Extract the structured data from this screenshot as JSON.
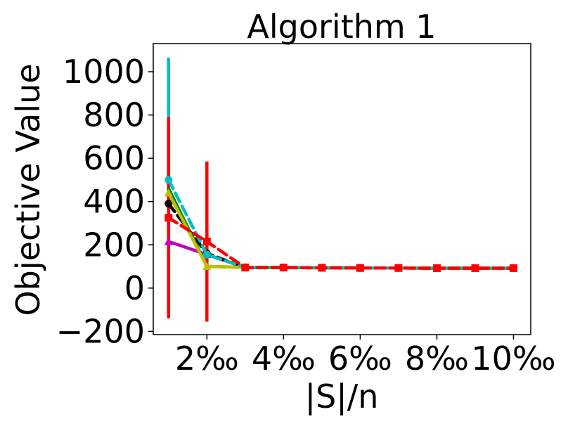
{
  "chart_data": {
    "type": "line",
    "title": "Algorithm 1",
    "xlabel": "|S|/n",
    "ylabel": "Objective Value",
    "x": [
      1,
      2,
      3,
      4,
      5,
      6,
      7,
      8,
      9,
      10
    ],
    "xticks": [
      2,
      4,
      6,
      8,
      10
    ],
    "xtick_labels": [
      "2‰",
      "4‰",
      "6‰",
      "8‰",
      "10‰"
    ],
    "xlim": [
      0.6,
      10.45
    ],
    "yticks": [
      -200,
      0,
      200,
      400,
      600,
      800,
      1000
    ],
    "ytick_labels": [
      "−200",
      "0",
      "200",
      "400",
      "600",
      "800",
      "1000"
    ],
    "ylim": [
      -215,
      1130
    ],
    "grid": false,
    "series": [
      {
        "color": "#bf00bf",
        "dash": "solid",
        "marker": "triangle",
        "values": [
          215,
          155,
          95,
          95,
          94,
          93,
          93,
          92,
          92,
          92
        ]
      },
      {
        "color": "#000000",
        "dash": "dashed",
        "marker": "circle",
        "values": [
          390,
          160,
          96,
          95,
          94,
          93,
          93,
          92,
          92,
          92
        ],
        "err": [
          0,
          0,
          0,
          0,
          0,
          0,
          0,
          0,
          0,
          0
        ]
      },
      {
        "color": "#008000",
        "dash": "solid",
        "marker": "none",
        "values": [
          460,
          100,
          96,
          95,
          94,
          93,
          93,
          92,
          92,
          92
        ]
      },
      {
        "color": "#bfbf00",
        "dash": "solid",
        "marker": "triangle",
        "values": [
          440,
          100,
          96,
          95,
          94,
          93,
          93,
          92,
          92,
          92
        ]
      },
      {
        "color": "#00bfbf",
        "dash": "dashed",
        "marker": "circle",
        "values": [
          500,
          155,
          96,
          95,
          94,
          93,
          93,
          92,
          92,
          92
        ],
        "err": [
          565,
          0,
          0,
          0,
          0,
          0,
          0,
          0,
          0,
          0
        ]
      },
      {
        "color": "#ff0000",
        "dash": "dashed",
        "marker": "square",
        "values": [
          325,
          215,
          95,
          95,
          94,
          93,
          93,
          92,
          92,
          92
        ],
        "err": [
          465,
          370,
          0,
          0,
          0,
          0,
          0,
          0,
          0,
          0
        ]
      }
    ]
  }
}
